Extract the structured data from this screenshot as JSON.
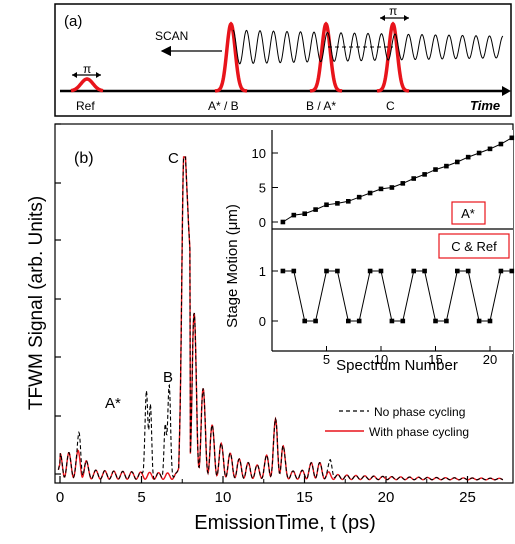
{
  "panel_a": {
    "label": "(a)",
    "scan_label": "SCAN",
    "pi_label": "π",
    "time_label": "Time",
    "pulses": [
      "Ref",
      "A* / B",
      "B / A*",
      "C"
    ]
  },
  "panel_b": {
    "label": "(b)",
    "xlabel": "EmissionTime, t (ps)",
    "ylabel": "TFWM Signal (arb. Units)",
    "peak_labels": {
      "A": "A*",
      "B": "B",
      "C": "C"
    },
    "legend": [
      "No phase cycling",
      "With phase cycling"
    ],
    "xticks": [
      "0",
      "5",
      "10",
      "15",
      "20",
      "25"
    ]
  },
  "inset": {
    "xlabel": "Spectrum Number",
    "ylabel": "Stage Motion (μm)",
    "top_box_label": "A*",
    "bottom_box_label": "C & Ref",
    "top_yticks": [
      "0",
      "5",
      "10"
    ],
    "bottom_yticks": [
      "0",
      "1"
    ],
    "xticks": [
      "5",
      "10",
      "15",
      "20"
    ]
  },
  "colors": {
    "red": "#e8141b",
    "black": "#000000"
  },
  "chart_data": [
    {
      "type": "line",
      "title": "",
      "xlabel": "EmissionTime, t (ps)",
      "ylabel": "TFWM Signal (arb. Units)",
      "xlim": [
        0,
        27
      ],
      "ylim": [
        0,
        1.1
      ],
      "grid": false,
      "legend_position": "bottom-right",
      "series": [
        {
          "name": "No phase cycling",
          "style": "dashed",
          "color": "#000000",
          "peaks": [
            [
              1.2,
              0.07
            ],
            [
              5.3,
              0.27
            ],
            [
              6.7,
              0.28
            ],
            [
              7.6,
              1.0
            ],
            [
              13.4,
              0.19
            ],
            [
              16.6,
              0.05
            ]
          ]
        },
        {
          "name": "With phase cycling",
          "style": "solid",
          "color": "#e8141b",
          "peaks": [
            [
              7.6,
              1.0
            ],
            [
              13.4,
              0.19
            ]
          ]
        }
      ]
    },
    {
      "type": "line",
      "title": "",
      "xlabel": "Spectrum Number",
      "ylabel": "Stage Motion (μm)",
      "xlim": [
        0,
        22
      ],
      "ylim": [
        -0.5,
        13.5
      ],
      "grid": false,
      "series": [
        {
          "label": "A*",
          "x": [
            1,
            2,
            3,
            4,
            5,
            6,
            7,
            8,
            9,
            10,
            11,
            12,
            13,
            14,
            15,
            16,
            17,
            18,
            19,
            20,
            21,
            22
          ],
          "y": [
            0,
            1,
            1.2,
            1.8,
            2.5,
            2.7,
            3.0,
            3.6,
            4.2,
            4.8,
            5.0,
            5.6,
            6.3,
            6.9,
            7.6,
            8.1,
            8.7,
            9.4,
            10.0,
            10.6,
            11.3,
            12.2
          ]
        }
      ]
    },
    {
      "type": "line",
      "title": "",
      "xlabel": "Spectrum Number",
      "ylabel": "Stage Motion (μm)",
      "xlim": [
        0,
        22
      ],
      "ylim": [
        -0.2,
        1.3
      ],
      "grid": false,
      "series": [
        {
          "label": "C & Ref",
          "x": [
            1,
            2,
            3,
            4,
            5,
            6,
            7,
            8,
            9,
            10,
            11,
            12,
            13,
            14,
            15,
            16,
            17,
            18,
            19,
            20,
            21,
            22
          ],
          "y": [
            1,
            1,
            0,
            0,
            1,
            1,
            0,
            0,
            1,
            1,
            0,
            0,
            1,
            1,
            0,
            0,
            1,
            1,
            0,
            0,
            1,
            1
          ]
        }
      ]
    }
  ]
}
